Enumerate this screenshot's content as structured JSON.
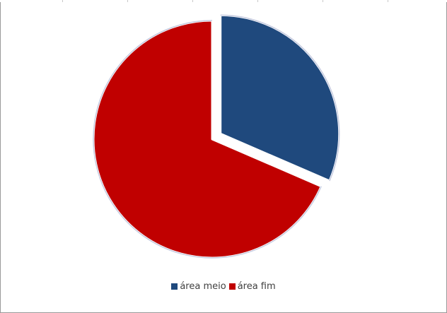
{
  "chart_data": {
    "type": "pie",
    "categories": [
      "área meio",
      "área fim"
    ],
    "values": [
      31.5,
      68.5
    ],
    "colors": [
      "#1f497d",
      "#c00000"
    ],
    "exploded": [
      true,
      false
    ],
    "legend_position": "bottom",
    "title": ""
  }
}
